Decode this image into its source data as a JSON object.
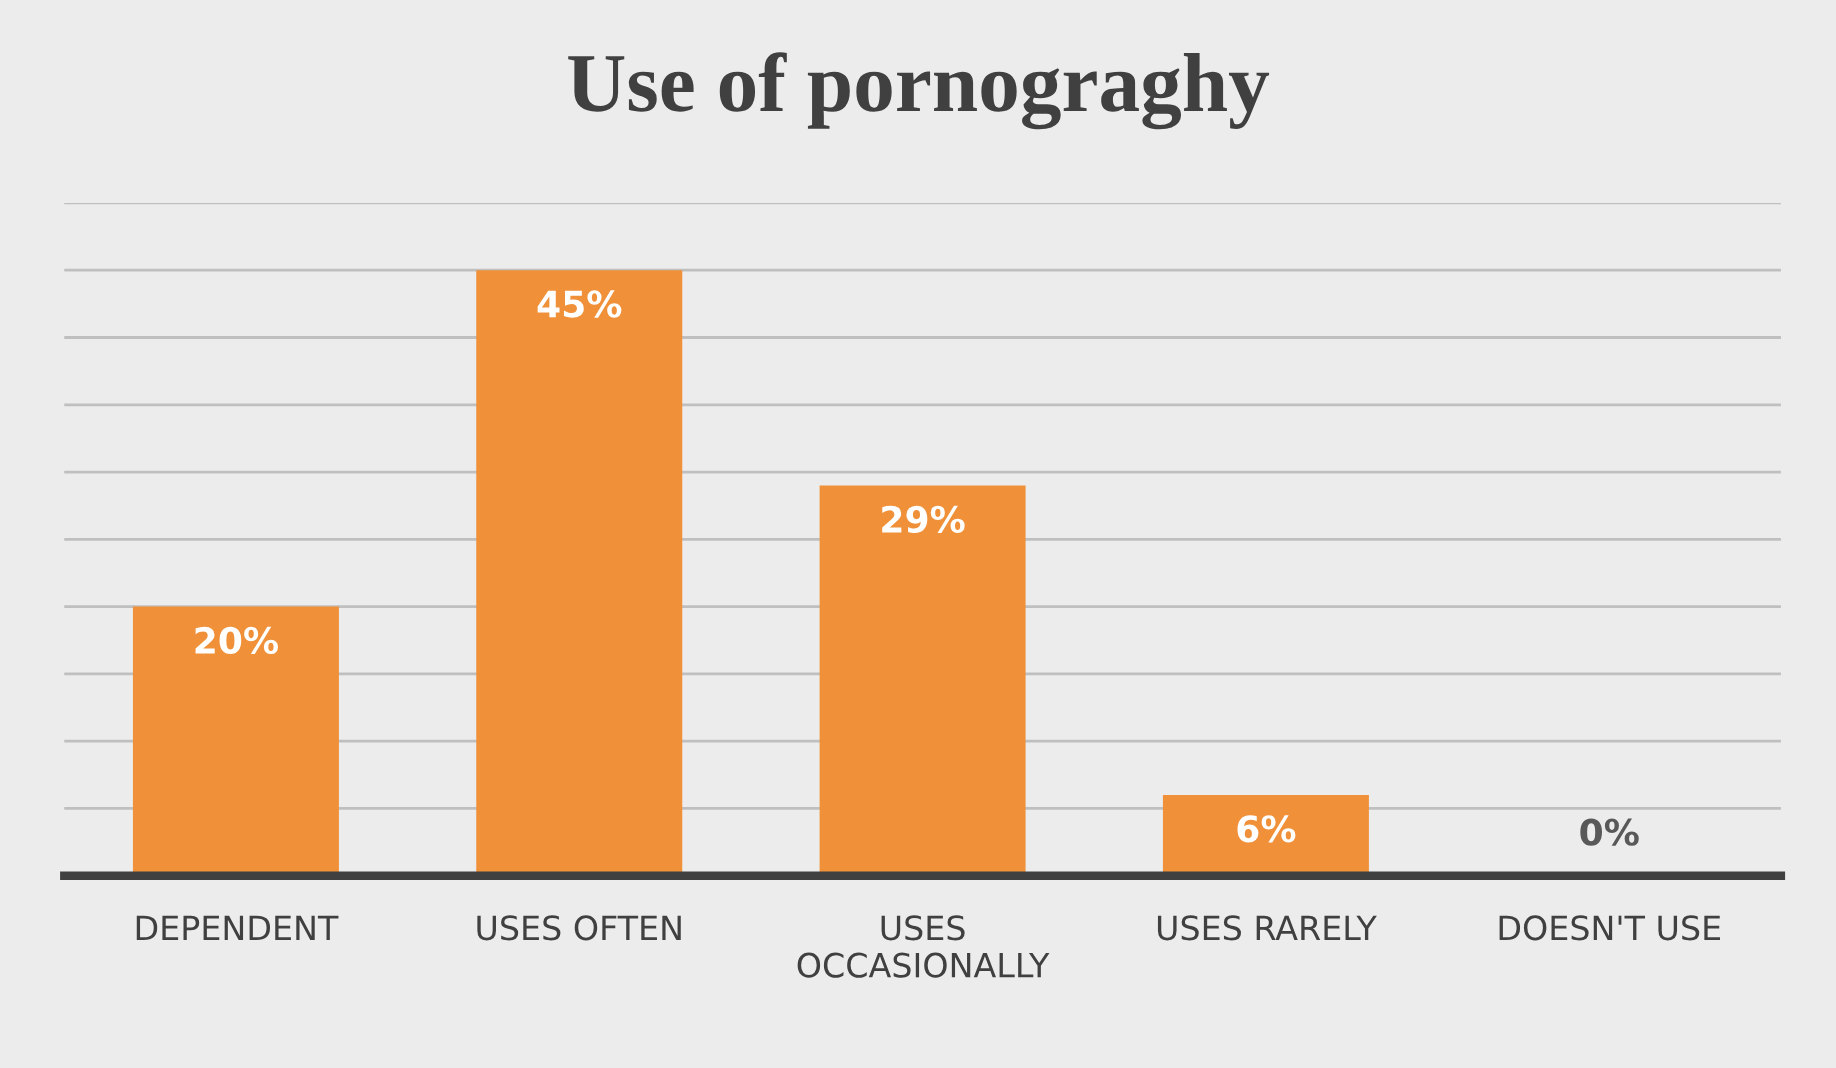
{
  "chart_data": {
    "type": "bar",
    "title": "Use of pornograghy",
    "categories": [
      "DEPENDENT",
      "USES OFTEN",
      "USES\nOCCASIONALLY",
      "USES RARELY",
      "DOESN'T USE"
    ],
    "values": [
      20,
      45,
      29,
      6,
      0
    ],
    "value_labels": [
      "20%",
      "45%",
      "29%",
      "6%",
      "0%"
    ],
    "color": "#f0913a",
    "ylim": [
      0,
      50
    ],
    "yticks": [
      {
        "value": 0,
        "label": null
      },
      {
        "value": 5,
        "label": null
      },
      {
        "value": 10,
        "label": null
      },
      {
        "value": 15,
        "label": null
      },
      {
        "value": 20,
        "label": null
      },
      {
        "value": 25,
        "label": null
      },
      {
        "value": 30,
        "label": null
      },
      {
        "value": 35,
        "label": null
      },
      {
        "value": 40,
        "label": null
      },
      {
        "value": 45,
        "label": null
      },
      {
        "value": 50,
        "label": null
      }
    ],
    "tick_labels": "x",
    "grid": "y",
    "legend": false
  }
}
